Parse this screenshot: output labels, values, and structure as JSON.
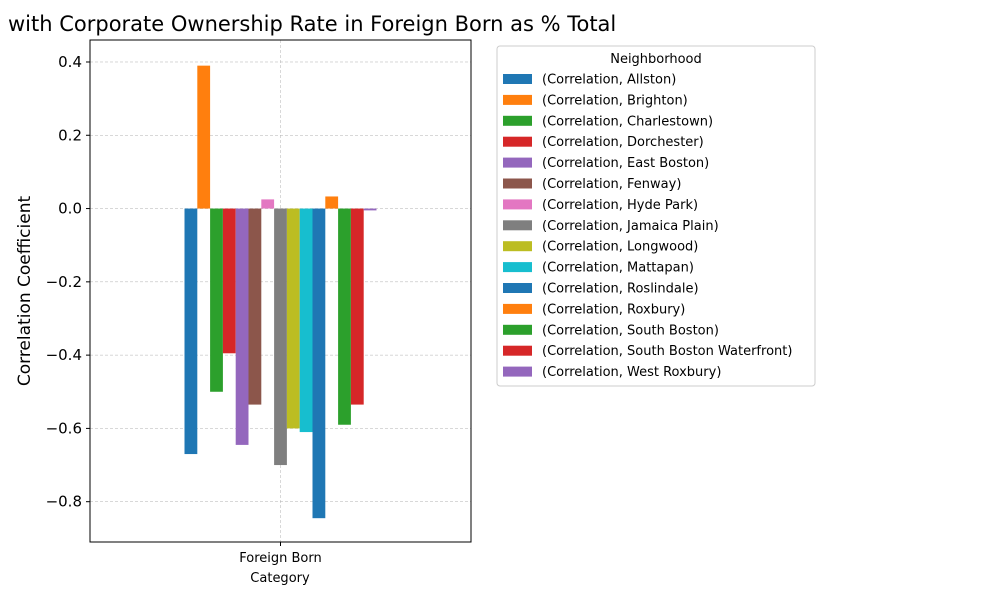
{
  "chart_data": {
    "type": "bar",
    "title": "n with Corporate Ownership Rate in Foreign Born as % Total",
    "xlabel": "Category",
    "ylabel": "Correlation Coefficient",
    "categories": [
      "Foreign Born"
    ],
    "ylim": [
      -0.91,
      0.46
    ],
    "yticks": [
      0.4,
      0.2,
      0.0,
      -0.2,
      -0.4,
      -0.6,
      -0.8
    ],
    "ytick_labels": [
      "0.4",
      "0.2",
      "0.0",
      "−0.2",
      "−0.4",
      "−0.6",
      "−0.8"
    ],
    "grid": true,
    "legend_title": "Neighborhood",
    "legend_position": "outside-right-top",
    "series": [
      {
        "name": "(Correlation, Allston)",
        "values": [
          -0.67
        ],
        "color": "#1f77b4"
      },
      {
        "name": "(Correlation, Brighton)",
        "values": [
          0.39
        ],
        "color": "#ff7f0e"
      },
      {
        "name": "(Correlation, Charlestown)",
        "values": [
          -0.5
        ],
        "color": "#2ca02c"
      },
      {
        "name": "(Correlation, Dorchester)",
        "values": [
          -0.395
        ],
        "color": "#d62728"
      },
      {
        "name": "(Correlation, East Boston)",
        "values": [
          -0.645
        ],
        "color": "#9467bd"
      },
      {
        "name": "(Correlation, Fenway)",
        "values": [
          -0.535
        ],
        "color": "#8c564b"
      },
      {
        "name": "(Correlation, Hyde Park)",
        "values": [
          0.025
        ],
        "color": "#e377c2"
      },
      {
        "name": "(Correlation, Jamaica Plain)",
        "values": [
          -0.7
        ],
        "color": "#7f7f7f"
      },
      {
        "name": "(Correlation, Longwood)",
        "values": [
          -0.6
        ],
        "color": "#bcbd22"
      },
      {
        "name": "(Correlation, Mattapan)",
        "values": [
          -0.61
        ],
        "color": "#17becf"
      },
      {
        "name": "(Correlation, Roslindale)",
        "values": [
          -0.845
        ],
        "color": "#1f77b4"
      },
      {
        "name": "(Correlation, Roxbury)",
        "values": [
          0.033
        ],
        "color": "#ff7f0e"
      },
      {
        "name": "(Correlation, South Boston)",
        "values": [
          -0.59
        ],
        "color": "#2ca02c"
      },
      {
        "name": "(Correlation, South Boston Waterfront)",
        "values": [
          -0.535
        ],
        "color": "#d62728"
      },
      {
        "name": "(Correlation, West Roxbury)",
        "values": [
          -0.005
        ],
        "color": "#9467bd"
      }
    ]
  }
}
